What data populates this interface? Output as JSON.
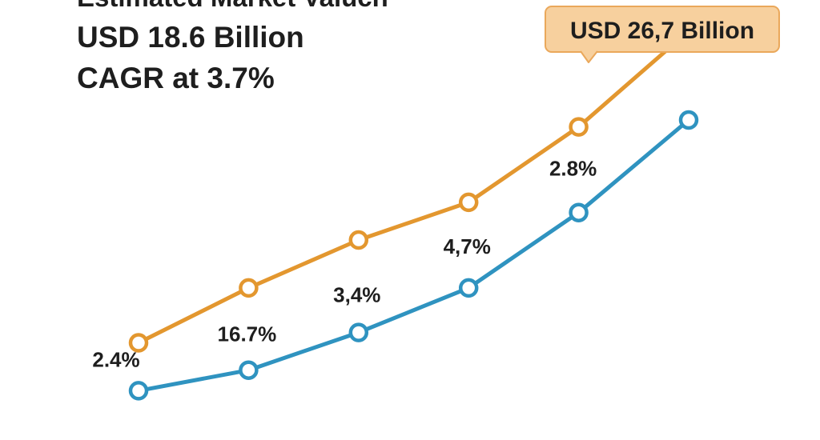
{
  "header": {
    "cut_title": "Estimated Market Valuch",
    "value_line": "USD 18.6 Billion",
    "cagr_line": "CAGR at 3.7%"
  },
  "callout": {
    "label": "USD 26,7 Billion"
  },
  "colors": {
    "series_orange": "#e3972f",
    "series_blue": "#2f93c0",
    "callout_fill": "#f7d09e",
    "callout_stroke": "#eaa85b",
    "text": "#1e1e1e"
  },
  "chart_data": {
    "type": "line",
    "x": [
      1,
      2,
      3,
      4,
      5,
      6
    ],
    "series": [
      {
        "color": "#e3972f",
        "values": [
          17.6,
          19.2,
          20.6,
          21.7,
          23.9,
          26.7
        ]
      },
      {
        "color": "#2f93c0",
        "values": [
          16.2,
          16.8,
          17.9,
          19.2,
          21.4,
          24.1
        ]
      }
    ],
    "point_labels": [
      {
        "series": 1,
        "index": 0,
        "text": "2.4%"
      },
      {
        "series": 1,
        "index": 1,
        "text": "16.7%"
      },
      {
        "series": 1,
        "index": 2,
        "text": "3,4%"
      },
      {
        "series": 1,
        "index": 3,
        "text": "4,7%"
      },
      {
        "series": 1,
        "index": 4,
        "text": "2.8%"
      }
    ],
    "xlim": [
      1,
      6
    ],
    "ylim": [
      16,
      28
    ],
    "grid": false,
    "legend": "none"
  }
}
